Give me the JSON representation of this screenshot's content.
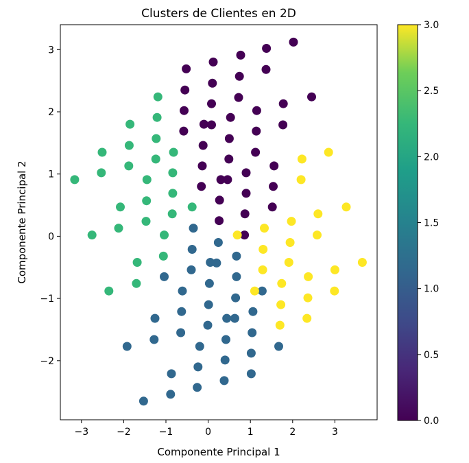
{
  "chart_data": {
    "type": "scatter",
    "title": "Clusters de Clientes en 2D",
    "xlabel": "Componente Principal 1",
    "ylabel": "Componente Principal 2",
    "xlim": [
      -3.5,
      4.0
    ],
    "ylim": [
      -2.95,
      3.4
    ],
    "x_ticks": [
      -3,
      -2,
      -1,
      0,
      1,
      2,
      3
    ],
    "x_tick_labels": [
      "−3",
      "−2",
      "−1",
      "0",
      "1",
      "2",
      "3"
    ],
    "y_ticks": [
      -2,
      -1,
      0,
      1,
      2,
      3
    ],
    "y_tick_labels": [
      "−2",
      "−1",
      "0",
      "1",
      "2",
      "3"
    ],
    "grid": false,
    "colormap": "viridis",
    "colorbar": {
      "min": 0.0,
      "max": 3.0,
      "ticks": [
        0.0,
        0.5,
        1.0,
        1.5,
        2.0,
        2.5,
        3.0
      ],
      "tick_labels": [
        "0.0",
        "0.5",
        "1.0",
        "1.5",
        "2.0",
        "2.5",
        "3.0"
      ]
    },
    "cluster_colors": {
      "0": "#440154",
      "1": "#31688e",
      "2": "#35b779",
      "3": "#fde725"
    },
    "points": [
      {
        "x": 2.02,
        "y": 3.12,
        "c": 0
      },
      {
        "x": 1.38,
        "y": 3.02,
        "c": 0
      },
      {
        "x": 0.77,
        "y": 2.91,
        "c": 0
      },
      {
        "x": 0.12,
        "y": 2.8,
        "c": 0
      },
      {
        "x": -0.52,
        "y": 2.69,
        "c": 0
      },
      {
        "x": 1.37,
        "y": 2.68,
        "c": 0
      },
      {
        "x": 0.74,
        "y": 2.57,
        "c": 0
      },
      {
        "x": 0.1,
        "y": 2.46,
        "c": 0
      },
      {
        "x": -0.55,
        "y": 2.35,
        "c": 0
      },
      {
        "x": 2.45,
        "y": 2.24,
        "c": 0
      },
      {
        "x": 0.72,
        "y": 2.23,
        "c": 0
      },
      {
        "x": 0.08,
        "y": 2.13,
        "c": 0
      },
      {
        "x": 1.78,
        "y": 2.13,
        "c": 0
      },
      {
        "x": -0.57,
        "y": 2.02,
        "c": 0
      },
      {
        "x": 1.15,
        "y": 2.02,
        "c": 0
      },
      {
        "x": 0.53,
        "y": 1.91,
        "c": 0
      },
      {
        "x": 1.77,
        "y": 1.79,
        "c": 0
      },
      {
        "x": -0.1,
        "y": 1.8,
        "c": 0
      },
      {
        "x": 0.08,
        "y": 1.79,
        "c": 0
      },
      {
        "x": -0.58,
        "y": 1.69,
        "c": 0
      },
      {
        "x": 1.14,
        "y": 1.69,
        "c": 0
      },
      {
        "x": 0.5,
        "y": 1.57,
        "c": 0
      },
      {
        "x": -0.12,
        "y": 1.46,
        "c": 0
      },
      {
        "x": 1.12,
        "y": 1.35,
        "c": 0
      },
      {
        "x": 0.49,
        "y": 1.24,
        "c": 0
      },
      {
        "x": -0.14,
        "y": 1.13,
        "c": 0
      },
      {
        "x": 1.56,
        "y": 1.13,
        "c": 0
      },
      {
        "x": 0.9,
        "y": 1.02,
        "c": 0
      },
      {
        "x": 0.3,
        "y": 0.91,
        "c": 0
      },
      {
        "x": 0.46,
        "y": 0.91,
        "c": 0
      },
      {
        "x": -0.16,
        "y": 0.8,
        "c": 0
      },
      {
        "x": 1.54,
        "y": 0.8,
        "c": 0
      },
      {
        "x": 0.9,
        "y": 0.69,
        "c": 0
      },
      {
        "x": 0.27,
        "y": 0.58,
        "c": 0
      },
      {
        "x": 1.52,
        "y": 0.47,
        "c": 0
      },
      {
        "x": 0.87,
        "y": 0.36,
        "c": 0
      },
      {
        "x": 0.26,
        "y": 0.25,
        "c": 0
      },
      {
        "x": 0.86,
        "y": 0.02,
        "c": 0
      },
      {
        "x": -0.35,
        "y": 0.13,
        "c": 1
      },
      {
        "x": 0.24,
        "y": -0.1,
        "c": 1
      },
      {
        "x": -0.38,
        "y": -0.21,
        "c": 1
      },
      {
        "x": 0.67,
        "y": -0.32,
        "c": 1
      },
      {
        "x": 0.05,
        "y": -0.42,
        "c": 1
      },
      {
        "x": 0.2,
        "y": -0.43,
        "c": 1
      },
      {
        "x": -0.4,
        "y": -0.54,
        "c": 1
      },
      {
        "x": -1.04,
        "y": -0.65,
        "c": 1
      },
      {
        "x": 0.67,
        "y": -0.65,
        "c": 1
      },
      {
        "x": 0.03,
        "y": -0.76,
        "c": 1
      },
      {
        "x": -0.61,
        "y": -0.88,
        "c": 1
      },
      {
        "x": 1.28,
        "y": -0.88,
        "c": 1
      },
      {
        "x": 0.65,
        "y": -0.99,
        "c": 1
      },
      {
        "x": 0.01,
        "y": -1.1,
        "c": 1
      },
      {
        "x": -0.63,
        "y": -1.21,
        "c": 1
      },
      {
        "x": 1.06,
        "y": -1.21,
        "c": 1
      },
      {
        "x": -1.26,
        "y": -1.32,
        "c": 1
      },
      {
        "x": 0.44,
        "y": -1.32,
        "c": 1
      },
      {
        "x": 0.63,
        "y": -1.32,
        "c": 1
      },
      {
        "x": -0.01,
        "y": -1.43,
        "c": 1
      },
      {
        "x": -0.65,
        "y": -1.55,
        "c": 1
      },
      {
        "x": 1.04,
        "y": -1.55,
        "c": 1
      },
      {
        "x": -1.28,
        "y": -1.66,
        "c": 1
      },
      {
        "x": 0.42,
        "y": -1.66,
        "c": 1
      },
      {
        "x": -1.92,
        "y": -1.77,
        "c": 1
      },
      {
        "x": -0.2,
        "y": -1.77,
        "c": 1
      },
      {
        "x": 1.67,
        "y": -1.77,
        "c": 1
      },
      {
        "x": 1.02,
        "y": -1.88,
        "c": 1
      },
      {
        "x": 0.4,
        "y": -1.99,
        "c": 1
      },
      {
        "x": -0.24,
        "y": -2.1,
        "c": 1
      },
      {
        "x": -0.87,
        "y": -2.21,
        "c": 1
      },
      {
        "x": 1.02,
        "y": -2.21,
        "c": 1
      },
      {
        "x": 0.38,
        "y": -2.32,
        "c": 1
      },
      {
        "x": -0.26,
        "y": -2.43,
        "c": 1
      },
      {
        "x": -0.89,
        "y": -2.54,
        "c": 1
      },
      {
        "x": -1.53,
        "y": -2.65,
        "c": 1
      },
      {
        "x": -1.19,
        "y": 2.24,
        "c": 2
      },
      {
        "x": -1.21,
        "y": 1.91,
        "c": 2
      },
      {
        "x": -1.85,
        "y": 1.8,
        "c": 2
      },
      {
        "x": -1.23,
        "y": 1.57,
        "c": 2
      },
      {
        "x": -1.87,
        "y": 1.46,
        "c": 2
      },
      {
        "x": -2.51,
        "y": 1.35,
        "c": 2
      },
      {
        "x": -0.82,
        "y": 1.35,
        "c": 2
      },
      {
        "x": -1.24,
        "y": 1.24,
        "c": 2
      },
      {
        "x": -1.88,
        "y": 1.13,
        "c": 2
      },
      {
        "x": -2.53,
        "y": 1.02,
        "c": 2
      },
      {
        "x": -0.84,
        "y": 1.02,
        "c": 2
      },
      {
        "x": -3.16,
        "y": 0.91,
        "c": 2
      },
      {
        "x": -1.45,
        "y": 0.91,
        "c": 2
      },
      {
        "x": -0.84,
        "y": 0.69,
        "c": 2
      },
      {
        "x": -1.46,
        "y": 0.57,
        "c": 2
      },
      {
        "x": -2.08,
        "y": 0.47,
        "c": 2
      },
      {
        "x": -0.38,
        "y": 0.47,
        "c": 2
      },
      {
        "x": -0.85,
        "y": 0.36,
        "c": 2
      },
      {
        "x": -1.47,
        "y": 0.24,
        "c": 2
      },
      {
        "x": -2.12,
        "y": 0.13,
        "c": 2
      },
      {
        "x": -1.04,
        "y": 0.02,
        "c": 2
      },
      {
        "x": -2.75,
        "y": 0.02,
        "c": 2
      },
      {
        "x": -1.06,
        "y": -0.32,
        "c": 2
      },
      {
        "x": -1.68,
        "y": -0.42,
        "c": 2
      },
      {
        "x": -1.7,
        "y": -0.76,
        "c": 2
      },
      {
        "x": -2.35,
        "y": -0.88,
        "c": 2
      },
      {
        "x": 2.85,
        "y": 1.35,
        "c": 3
      },
      {
        "x": 2.22,
        "y": 1.24,
        "c": 3
      },
      {
        "x": 2.2,
        "y": 0.91,
        "c": 3
      },
      {
        "x": 3.27,
        "y": 0.47,
        "c": 3
      },
      {
        "x": 2.6,
        "y": 0.36,
        "c": 3
      },
      {
        "x": 1.97,
        "y": 0.24,
        "c": 3
      },
      {
        "x": 1.33,
        "y": 0.13,
        "c": 3
      },
      {
        "x": 2.58,
        "y": 0.02,
        "c": 3
      },
      {
        "x": 0.69,
        "y": 0.02,
        "c": 3
      },
      {
        "x": 1.94,
        "y": -0.1,
        "c": 3
      },
      {
        "x": 1.3,
        "y": -0.21,
        "c": 3
      },
      {
        "x": 1.91,
        "y": -0.42,
        "c": 3
      },
      {
        "x": 3.65,
        "y": -0.42,
        "c": 3
      },
      {
        "x": 1.29,
        "y": -0.54,
        "c": 3
      },
      {
        "x": 3.0,
        "y": -0.54,
        "c": 3
      },
      {
        "x": 2.37,
        "y": -0.65,
        "c": 3
      },
      {
        "x": 1.74,
        "y": -0.76,
        "c": 3
      },
      {
        "x": 1.1,
        "y": -0.88,
        "c": 3
      },
      {
        "x": 2.99,
        "y": -0.88,
        "c": 3
      },
      {
        "x": 2.36,
        "y": -0.99,
        "c": 3
      },
      {
        "x": 1.72,
        "y": -1.1,
        "c": 3
      },
      {
        "x": 2.34,
        "y": -1.32,
        "c": 3
      },
      {
        "x": 1.7,
        "y": -1.43,
        "c": 3
      }
    ]
  }
}
